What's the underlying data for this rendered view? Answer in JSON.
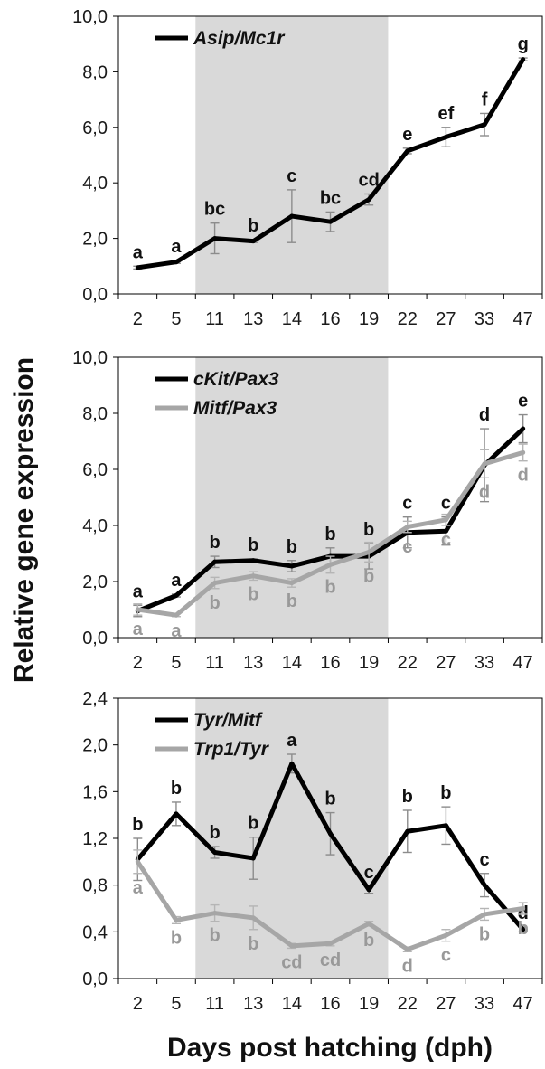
{
  "figure": {
    "ylabel": "Relative gene expression",
    "xlabel": "Days post hatching (dph)"
  },
  "colors": {
    "black_series": "#000000",
    "gray_series": "#a6a6a6",
    "gray_letters": "#999999",
    "shade": "#d9d9d9",
    "axis": "#000000"
  },
  "chart_data": [
    {
      "type": "line",
      "categories": [
        "2",
        "5",
        "11",
        "13",
        "14",
        "16",
        "19",
        "22",
        "27",
        "33",
        "47"
      ],
      "ylim": [
        0,
        10
      ],
      "yticks": [
        0,
        2,
        4,
        6,
        8,
        10
      ],
      "ytick_labels": [
        "0,0",
        "2,0",
        "4,0",
        "6,0",
        "8,0",
        "10,0"
      ],
      "shaded_range": [
        "11",
        "19"
      ],
      "legend_position": "top-left",
      "series": [
        {
          "name": "Asip/Mc1r",
          "color": "#000000",
          "values": [
            0.95,
            1.15,
            2.0,
            1.9,
            2.8,
            2.6,
            3.4,
            5.15,
            5.65,
            6.1,
            8.45
          ],
          "errors": [
            0.05,
            0.05,
            0.55,
            0.05,
            0.95,
            0.35,
            0.2,
            0.1,
            0.35,
            0.4,
            0.05
          ],
          "letters": [
            "a",
            "a",
            "bc",
            "b",
            "c",
            "bc",
            "cd",
            "e",
            "ef",
            "f",
            "g"
          ]
        }
      ]
    },
    {
      "type": "line",
      "categories": [
        "2",
        "5",
        "11",
        "13",
        "14",
        "16",
        "19",
        "22",
        "27",
        "33",
        "47"
      ],
      "ylim": [
        0,
        10
      ],
      "yticks": [
        0,
        2,
        4,
        6,
        8,
        10
      ],
      "ytick_labels": [
        "0,0",
        "2,0",
        "4,0",
        "6,0",
        "8,0",
        "10,0"
      ],
      "shaded_range": [
        "11",
        "19"
      ],
      "legend_position": "top-left",
      "series": [
        {
          "name": "cKit/Pax3",
          "color": "#000000",
          "values": [
            0.95,
            1.5,
            2.7,
            2.75,
            2.55,
            2.9,
            2.9,
            3.75,
            3.8,
            6.15,
            7.45
          ],
          "errors": [
            0.2,
            0.05,
            0.2,
            0.05,
            0.2,
            0.3,
            0.45,
            0.55,
            0.5,
            1.3,
            0.5
          ],
          "letters": [
            "a",
            "a",
            "b",
            "b",
            "b",
            "b",
            "b",
            "c",
            "c",
            "d",
            "e"
          ]
        },
        {
          "name": "Mitf/Pax3",
          "color": "#a6a6a6",
          "values": [
            1.0,
            0.8,
            1.95,
            2.2,
            1.95,
            2.6,
            3.05,
            3.95,
            4.2,
            6.2,
            6.6
          ],
          "errors": [
            0.2,
            0.05,
            0.2,
            0.15,
            0.15,
            0.3,
            0.35,
            0.2,
            0.2,
            0.5,
            0.3
          ],
          "letters": [
            "a",
            "a",
            "b",
            "b",
            "b",
            "b",
            "b",
            "c",
            "c",
            "d",
            "d"
          ]
        }
      ]
    },
    {
      "type": "line",
      "categories": [
        "2",
        "5",
        "11",
        "13",
        "14",
        "16",
        "19",
        "22",
        "27",
        "33",
        "47"
      ],
      "ylim": [
        0,
        2.4
      ],
      "yticks": [
        0,
        0.4,
        0.8,
        1.2,
        1.6,
        2.0,
        2.4
      ],
      "ytick_labels": [
        "0,0",
        "0,4",
        "0,8",
        "1,2",
        "1,6",
        "2,0",
        "2,4"
      ],
      "shaded_range": [
        "11",
        "19"
      ],
      "legend_position": "top-left",
      "series": [
        {
          "name": "Tyr/Mitf",
          "color": "#000000",
          "values": [
            1.02,
            1.41,
            1.08,
            1.03,
            1.84,
            1.24,
            0.76,
            1.26,
            1.31,
            0.8,
            0.42
          ],
          "errors": [
            0.18,
            0.1,
            0.05,
            0.18,
            0.08,
            0.18,
            0.03,
            0.18,
            0.16,
            0.1,
            0.02
          ],
          "letters": [
            "b",
            "b",
            "b",
            "b",
            "a",
            "b",
            "c",
            "b",
            "b",
            "c",
            "d"
          ]
        },
        {
          "name": "Trp1/Tyr",
          "color": "#a6a6a6",
          "values": [
            1.0,
            0.5,
            0.56,
            0.52,
            0.28,
            0.3,
            0.47,
            0.25,
            0.37,
            0.55,
            0.6
          ],
          "errors": [
            0.1,
            0.03,
            0.07,
            0.1,
            0.02,
            0.02,
            0.02,
            0.02,
            0.05,
            0.05,
            0.05
          ],
          "letters": [
            "a",
            "b",
            "b",
            "b",
            "cd",
            "cd",
            "b",
            "d",
            "c",
            "b",
            "b"
          ]
        }
      ]
    }
  ]
}
